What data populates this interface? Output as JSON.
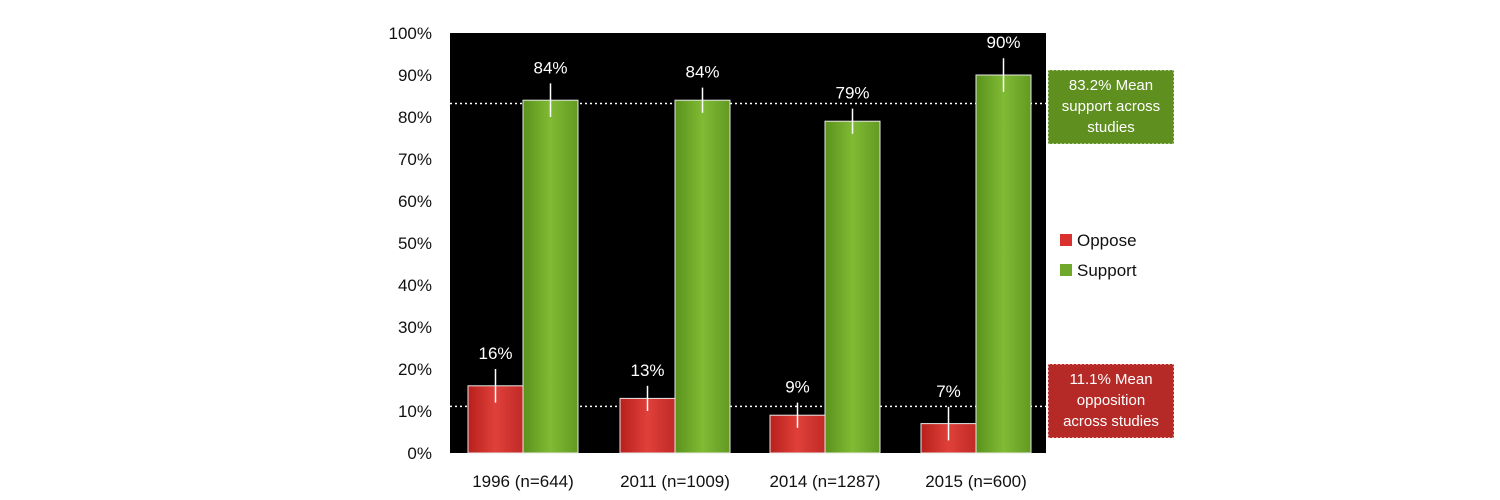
{
  "chart_data": {
    "type": "bar",
    "categories": [
      "1996 (n=644)",
      "2011 (n=1009)",
      "2014 (n=1287)",
      "2015 (n=600)"
    ],
    "series": [
      {
        "name": "Oppose",
        "values": [
          16,
          13,
          9,
          7
        ],
        "labels": [
          "16%",
          "13%",
          "9%",
          "7%"
        ],
        "color": "#d9322e"
      },
      {
        "name": "Support",
        "values": [
          84,
          84,
          79,
          90
        ],
        "labels": [
          "84%",
          "84%",
          "79%",
          "90%"
        ],
        "color": "#6fa82a"
      }
    ],
    "error_bars": {
      "Oppose": [
        [
          12,
          20
        ],
        [
          10,
          16
        ],
        [
          6,
          12
        ],
        [
          3,
          11
        ]
      ],
      "Support": [
        [
          80,
          88
        ],
        [
          81,
          87
        ],
        [
          76,
          82
        ],
        [
          86,
          94
        ]
      ]
    },
    "yticks": [
      "0%",
      "10%",
      "20%",
      "30%",
      "40%",
      "50%",
      "60%",
      "70%",
      "80%",
      "90%",
      "100%"
    ],
    "ylim": [
      0,
      100
    ],
    "plot_background": "#000000",
    "legend_position": "right",
    "reference_lines": [
      {
        "value": 83.2,
        "label_lines": [
          "83.2% Mean",
          "support across",
          "studies"
        ],
        "color": "#5e8f1f"
      },
      {
        "value": 11.1,
        "label_lines": [
          "11.1% Mean",
          "opposition",
          "across studies"
        ],
        "color": "#b52a26"
      }
    ]
  }
}
